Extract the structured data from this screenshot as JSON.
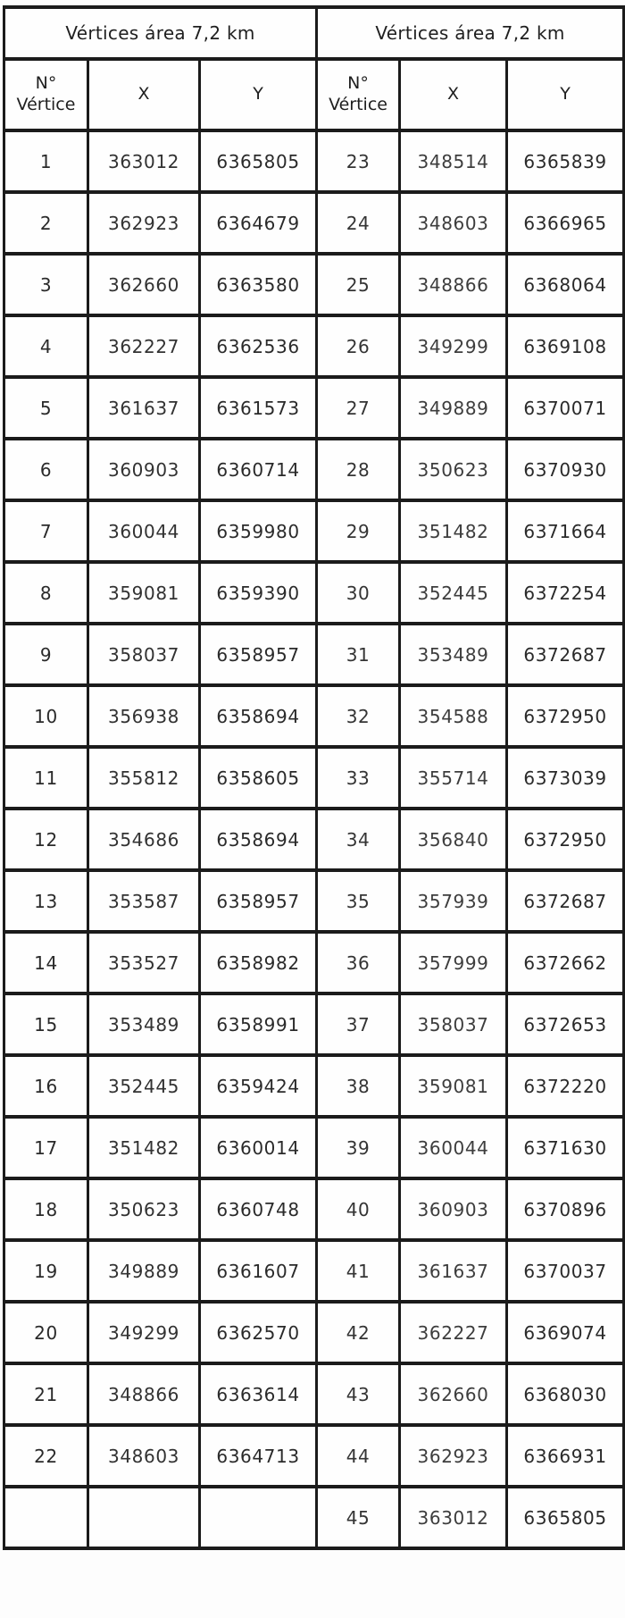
{
  "left_table": {
    "title": "Vértices área 7,2 km",
    "columns": [
      "N° Vértice",
      "X",
      "Y"
    ],
    "rows": [
      [
        "1",
        "363012",
        "6365805"
      ],
      [
        "2",
        "362923",
        "6364679"
      ],
      [
        "3",
        "362660",
        "6363580"
      ],
      [
        "4",
        "362227",
        "6362536"
      ],
      [
        "5",
        "361637",
        "6361573"
      ],
      [
        "6",
        "360903",
        "6360714"
      ],
      [
        "7",
        "360044",
        "6359980"
      ],
      [
        "8",
        "359081",
        "6359390"
      ],
      [
        "9",
        "358037",
        "6358957"
      ],
      [
        "10",
        "356938",
        "6358694"
      ],
      [
        "11",
        "355812",
        "6358605"
      ],
      [
        "12",
        "354686",
        "6358694"
      ],
      [
        "13",
        "353587",
        "6358957"
      ],
      [
        "14",
        "353527",
        "6358982"
      ],
      [
        "15",
        "353489",
        "6358991"
      ],
      [
        "16",
        "352445",
        "6359424"
      ],
      [
        "17",
        "351482",
        "6360014"
      ],
      [
        "18",
        "350623",
        "6360748"
      ],
      [
        "19",
        "349889",
        "6361607"
      ],
      [
        "20",
        "349299",
        "6362570"
      ],
      [
        "21",
        "348866",
        "6363614"
      ],
      [
        "22",
        "348603",
        "6364713"
      ],
      [
        "",
        "",
        ""
      ]
    ]
  },
  "right_table": {
    "title": "Vértices área 7,2 km",
    "columns": [
      "N° Vértice",
      "X",
      "Y"
    ],
    "rows": [
      [
        "23",
        "348514",
        "6365839"
      ],
      [
        "24",
        "348603",
        "6366965"
      ],
      [
        "25",
        "348866",
        "6368064"
      ],
      [
        "26",
        "349299",
        "6369108"
      ],
      [
        "27",
        "349889",
        "6370071"
      ],
      [
        "28",
        "350623",
        "6370930"
      ],
      [
        "29",
        "351482",
        "6371664"
      ],
      [
        "30",
        "352445",
        "6372254"
      ],
      [
        "31",
        "353489",
        "6372687"
      ],
      [
        "32",
        "354588",
        "6372950"
      ],
      [
        "33",
        "355714",
        "6373039"
      ],
      [
        "34",
        "356840",
        "6372950"
      ],
      [
        "35",
        "357939",
        "6372687"
      ],
      [
        "36",
        "357999",
        "6372662"
      ],
      [
        "37",
        "358037",
        "6372653"
      ],
      [
        "38",
        "359081",
        "6372220"
      ],
      [
        "39",
        "360044",
        "6371630"
      ],
      [
        "40",
        "360903",
        "6370896"
      ],
      [
        "41",
        "361637",
        "6370037"
      ],
      [
        "42",
        "362227",
        "6369074"
      ],
      [
        "43",
        "362660",
        "6368030"
      ],
      [
        "44",
        "362923",
        "6366931"
      ],
      [
        "45",
        "363012",
        "6365805"
      ]
    ]
  }
}
